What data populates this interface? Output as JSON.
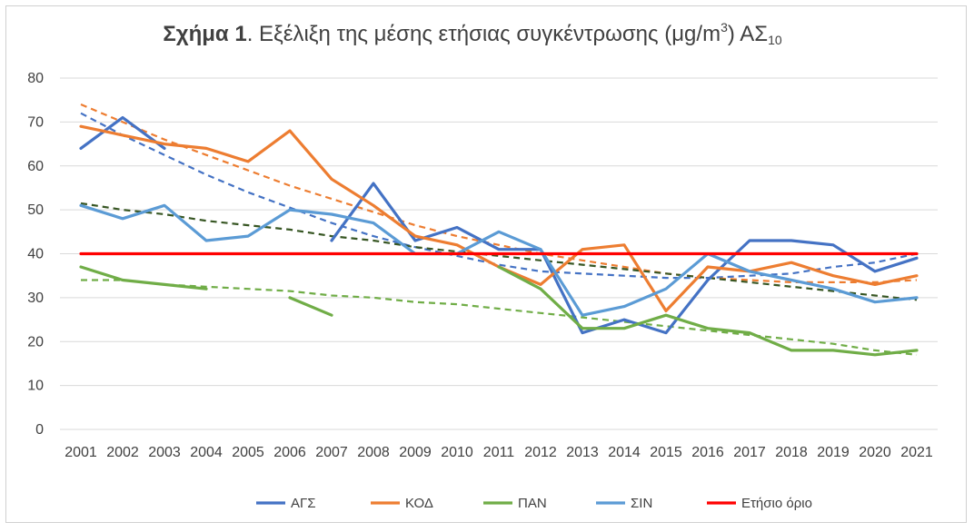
{
  "title": {
    "bold": "Σχήμα 1",
    "text": ". Εξέλιξη της μέσης ετήσιας συγκέντρωσης (μg/m",
    "sup": "3",
    "after": ") ΑΣ",
    "sub": "10"
  },
  "chart_data": {
    "type": "line",
    "title": "Σχήμα 1. Εξέλιξη της μέσης ετήσιας συγκέντρωσης (μg/m3) ΑΣ10",
    "xlabel": "",
    "ylabel": "",
    "ylim": [
      0,
      80
    ],
    "yticks": [
      "0",
      "10",
      "20",
      "30",
      "40",
      "50",
      "60",
      "70",
      "80"
    ],
    "categories": [
      "2001",
      "2002",
      "2003",
      "2004",
      "2005",
      "2006",
      "2007",
      "2008",
      "2009",
      "2010",
      "2011",
      "2012",
      "2013",
      "2014",
      "2015",
      "2016",
      "2017",
      "2018",
      "2019",
      "2020",
      "2021"
    ],
    "grid": true,
    "legend_position": "bottom",
    "series": [
      {
        "name": "ΑΓΣ",
        "color": "#4472c4",
        "values": [
          64,
          71,
          64,
          null,
          null,
          null,
          43,
          56,
          43,
          46,
          41,
          41,
          22,
          25,
          22,
          34,
          43,
          43,
          42,
          36,
          39
        ],
        "trend": [
          72,
          67,
          62.5,
          58,
          54,
          50.5,
          47,
          44,
          41.5,
          39.5,
          37.5,
          36,
          35.5,
          35,
          34.5,
          34.5,
          35,
          35.5,
          37,
          38,
          40
        ]
      },
      {
        "name": "ΚΟΔ",
        "color": "#ed7d31",
        "values": [
          69,
          67,
          65,
          64,
          61,
          68,
          57,
          51,
          44,
          42,
          37,
          33,
          41,
          42,
          27,
          37,
          36,
          38,
          35,
          33,
          35
        ],
        "trend": [
          74,
          70,
          66,
          62.5,
          59,
          55.5,
          52.5,
          49.5,
          46.5,
          44,
          42,
          40,
          38.5,
          37,
          35.5,
          34.5,
          34,
          33.5,
          33.5,
          33.5,
          34
        ]
      },
      {
        "name": "ΠΑΝ",
        "color": "#70ad47",
        "values": [
          37,
          34,
          33,
          32,
          null,
          30,
          26,
          null,
          null,
          null,
          37,
          32,
          23,
          23,
          26,
          23,
          22,
          18,
          18,
          17,
          18
        ],
        "trend": [
          34,
          34,
          33,
          32.5,
          32,
          31.5,
          30.5,
          30,
          29,
          28.5,
          27.5,
          26.5,
          25.5,
          24.5,
          23.5,
          22.5,
          21.5,
          20.5,
          19.5,
          18,
          17
        ]
      },
      {
        "name": "ΣΙΝ",
        "color": "#5b9bd5",
        "values": [
          51,
          48,
          51,
          43,
          44,
          50,
          49,
          47,
          40,
          40,
          45,
          41,
          26,
          28,
          32,
          40,
          36,
          34,
          32,
          29,
          30
        ],
        "trend": []
      },
      {
        "name": "Ετήσιο όριο",
        "color": "#ff0000",
        "values": [
          40,
          40,
          40,
          40,
          40,
          40,
          40,
          40,
          40,
          40,
          40,
          40,
          40,
          40,
          40,
          40,
          40,
          40,
          40,
          40,
          40
        ],
        "trend": []
      }
    ],
    "overall_trend": {
      "color": "#375623",
      "values": [
        51.5,
        50,
        49,
        47.5,
        46.5,
        45.5,
        44,
        43,
        41.5,
        40.5,
        39.5,
        38.5,
        37.5,
        36.5,
        35.5,
        34.5,
        33.5,
        32.5,
        31.5,
        30.5,
        29.5
      ]
    }
  }
}
